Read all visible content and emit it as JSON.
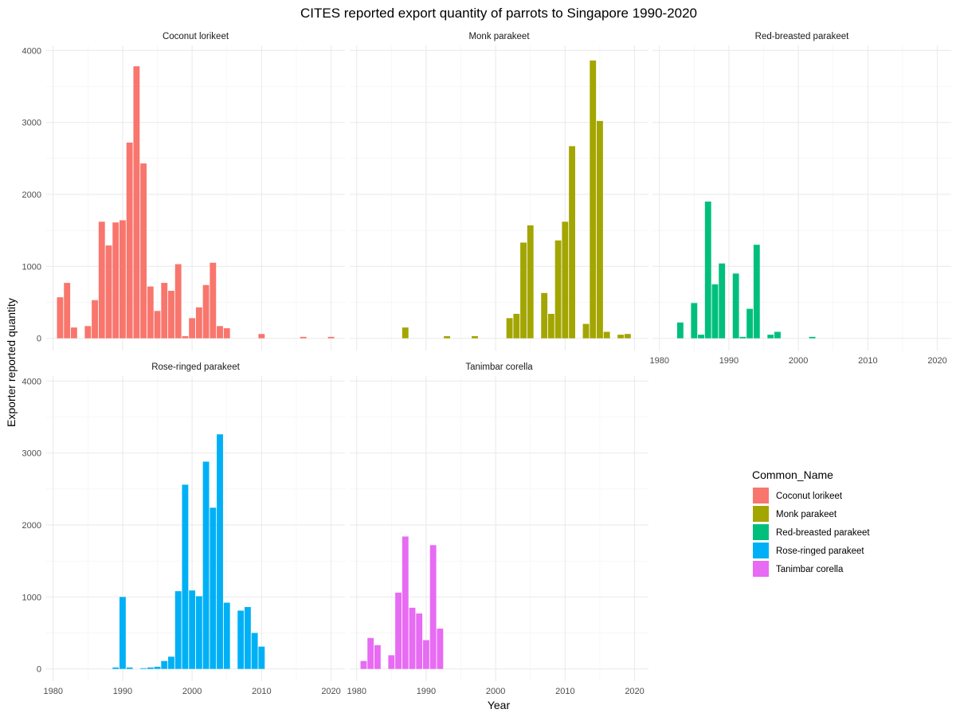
{
  "chart_data": {
    "type": "bar",
    "title": "CITES reported export quantity of parrots to Singapore 1990-2020",
    "xlabel": "Year",
    "ylabel": "Exporter reported quantity",
    "xlim": [
      1979,
      2022
    ],
    "ylim": [
      -170,
      4070
    ],
    "x_ticks": [
      1980,
      1990,
      2000,
      2010,
      2020
    ],
    "y_ticks": [
      0,
      1000,
      2000,
      3000,
      4000
    ],
    "grid": true,
    "facet_layout": "wrap, 3 columns",
    "legend": {
      "title": "Common_Name",
      "placement": "right",
      "entries": [
        "Coconut lorikeet",
        "Monk parakeet",
        "Red-breasted parakeet",
        "Rose-ringed parakeet",
        "Tanimbar corella"
      ]
    },
    "series": [
      {
        "name": "Coconut lorikeet",
        "color": "#F8766D",
        "points": [
          [
            1981,
            570
          ],
          [
            1982,
            770
          ],
          [
            1983,
            150
          ],
          [
            1985,
            170
          ],
          [
            1986,
            530
          ],
          [
            1987,
            1620
          ],
          [
            1988,
            1290
          ],
          [
            1989,
            1610
          ],
          [
            1990,
            1640
          ],
          [
            1991,
            2720
          ],
          [
            1992,
            3780
          ],
          [
            1993,
            2430
          ],
          [
            1994,
            720
          ],
          [
            1995,
            380
          ],
          [
            1996,
            770
          ],
          [
            1997,
            660
          ],
          [
            1998,
            1030
          ],
          [
            1999,
            30
          ],
          [
            2000,
            280
          ],
          [
            2001,
            430
          ],
          [
            2002,
            740
          ],
          [
            2003,
            1050
          ],
          [
            2004,
            170
          ],
          [
            2005,
            140
          ],
          [
            2010,
            60
          ],
          [
            2016,
            20
          ],
          [
            2020,
            20
          ]
        ]
      },
      {
        "name": "Monk parakeet",
        "color": "#A3A500",
        "points": [
          [
            1987,
            150
          ],
          [
            1993,
            30
          ],
          [
            1997,
            30
          ],
          [
            2002,
            280
          ],
          [
            2003,
            340
          ],
          [
            2004,
            1330
          ],
          [
            2005,
            1570
          ],
          [
            2007,
            630
          ],
          [
            2008,
            340
          ],
          [
            2009,
            1360
          ],
          [
            2010,
            1620
          ],
          [
            2011,
            2670
          ],
          [
            2013,
            200
          ],
          [
            2014,
            3860
          ],
          [
            2015,
            3020
          ],
          [
            2016,
            90
          ],
          [
            2018,
            50
          ],
          [
            2019,
            60
          ]
        ]
      },
      {
        "name": "Red-breasted parakeet",
        "color": "#00BF7D",
        "points": [
          [
            1983,
            220
          ],
          [
            1985,
            490
          ],
          [
            1986,
            50
          ],
          [
            1987,
            1900
          ],
          [
            1988,
            750
          ],
          [
            1989,
            1040
          ],
          [
            1991,
            900
          ],
          [
            1992,
            20
          ],
          [
            1993,
            410
          ],
          [
            1994,
            1300
          ],
          [
            1996,
            50
          ],
          [
            1997,
            90
          ],
          [
            2002,
            20
          ]
        ]
      },
      {
        "name": "Rose-ringed parakeet",
        "color": "#00B0F6",
        "points": [
          [
            1989,
            20
          ],
          [
            1990,
            1000
          ],
          [
            1991,
            20
          ],
          [
            1993,
            10
          ],
          [
            1994,
            20
          ],
          [
            1995,
            30
          ],
          [
            1996,
            110
          ],
          [
            1997,
            170
          ],
          [
            1998,
            1080
          ],
          [
            1999,
            2560
          ],
          [
            2000,
            1090
          ],
          [
            2001,
            1010
          ],
          [
            2002,
            2880
          ],
          [
            2003,
            2240
          ],
          [
            2004,
            3260
          ],
          [
            2005,
            920
          ],
          [
            2007,
            810
          ],
          [
            2008,
            860
          ],
          [
            2009,
            500
          ],
          [
            2010,
            310
          ]
        ]
      },
      {
        "name": "Tanimbar corella",
        "color": "#E76BF3",
        "points": [
          [
            1981,
            110
          ],
          [
            1982,
            430
          ],
          [
            1983,
            330
          ],
          [
            1985,
            190
          ],
          [
            1986,
            1060
          ],
          [
            1987,
            1840
          ],
          [
            1988,
            850
          ],
          [
            1989,
            770
          ],
          [
            1990,
            400
          ],
          [
            1991,
            1720
          ],
          [
            1992,
            560
          ]
        ]
      }
    ]
  }
}
